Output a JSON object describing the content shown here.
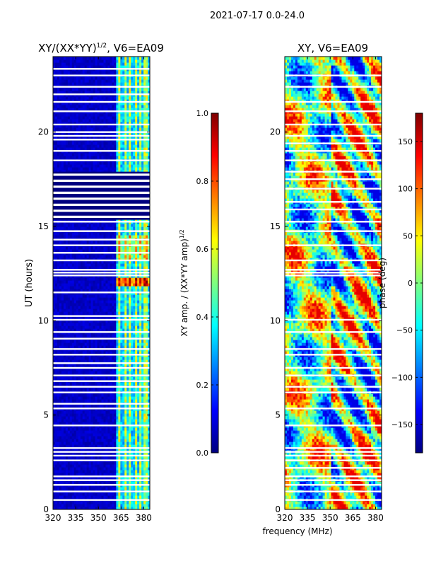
{
  "suptitle": "2021-07-17 0.0-24.0",
  "shared_xlabel": "frequency (MHz)",
  "chart_data": [
    {
      "type": "heatmap",
      "title_main": "XY/(XX*YY)",
      "title_exp": "1/2",
      "title_rest": ", V6=EA09",
      "xlabel": "",
      "ylabel": "UT (hours)",
      "xlim": [
        320,
        384
      ],
      "ylim": [
        0,
        24
      ],
      "xticks": [
        320,
        335,
        350,
        365,
        380
      ],
      "yticks": [
        0,
        5,
        10,
        15,
        20
      ],
      "colormap": "jet",
      "colorbar": {
        "label_main": "XY amp. / (XX*YY amp)",
        "label_exp": "1/2",
        "range": [
          0.0,
          1.0
        ],
        "ticks": [
          0.0,
          0.2,
          0.4,
          0.6,
          0.8,
          1.0
        ],
        "tick_labels": [
          "0.0",
          "0.2",
          "0.4",
          "0.6",
          "0.8",
          "1.0"
        ]
      },
      "gap_rows_hours": [
        0.5,
        0.95,
        1.3,
        1.55,
        1.75,
        2.6,
        2.85,
        3.05,
        3.25,
        4.45,
        5.35,
        5.6,
        6.2,
        6.5,
        6.8,
        7.1,
        7.5,
        7.75,
        8.2,
        8.5,
        9.05,
        9.4,
        10.05,
        10.25,
        11.5,
        12.4,
        12.55,
        12.7,
        13.2,
        13.6,
        14.0,
        14.3,
        14.75,
        15.25,
        15.5,
        15.75,
        16.0,
        16.3,
        16.6,
        17.0,
        17.25,
        17.5,
        17.75,
        18.5,
        19.0,
        19.6,
        19.8,
        20.0,
        20.4,
        21.1,
        21.6,
        22.0,
        22.4,
        23.0,
        23.35
      ],
      "gap_blocks_hours": [
        [
          15.35,
          17.9
        ]
      ],
      "bright_channels_mhz": [
        364,
        368,
        371,
        375,
        378,
        381
      ],
      "note": "amplitude near 0 below 362 MHz; band of elevated amplitude 362-382 MHz"
    },
    {
      "type": "heatmap",
      "title": "XY, V6=EA09",
      "xlabel": "",
      "ylabel": "",
      "xlim": [
        320,
        384
      ],
      "ylim": [
        0,
        24
      ],
      "xticks": [
        320,
        335,
        350,
        365,
        380
      ],
      "yticks": [
        0,
        5,
        10,
        15,
        20
      ],
      "colormap": "jet",
      "colorbar": {
        "label": "phase (deg)",
        "range": [
          -180,
          180
        ],
        "ticks": [
          -150,
          -100,
          -50,
          0,
          50,
          100,
          150
        ],
        "tick_labels": [
          "−150",
          "−100",
          "−50",
          "0",
          "50",
          "100",
          "150"
        ]
      },
      "gap_rows_hours": [
        0.5,
        0.95,
        1.3,
        1.55,
        1.75,
        2.2,
        2.6,
        2.85,
        3.05,
        3.25,
        4.45,
        5.35,
        6.2,
        6.5,
        7.1,
        7.5,
        8.2,
        8.5,
        9.4,
        10.05,
        12.4,
        12.55,
        12.7,
        13.2,
        14.0,
        14.75,
        15.25,
        15.9,
        16.3,
        17.0,
        17.5,
        17.9,
        18.5,
        19.0,
        19.4,
        19.8,
        20.4,
        21.1,
        21.6,
        22.4,
        23.0
      ],
      "gap_blocks_hours": [],
      "note": "phase wraps across full range; diagonal fringe patterns at 350-384 MHz"
    }
  ]
}
